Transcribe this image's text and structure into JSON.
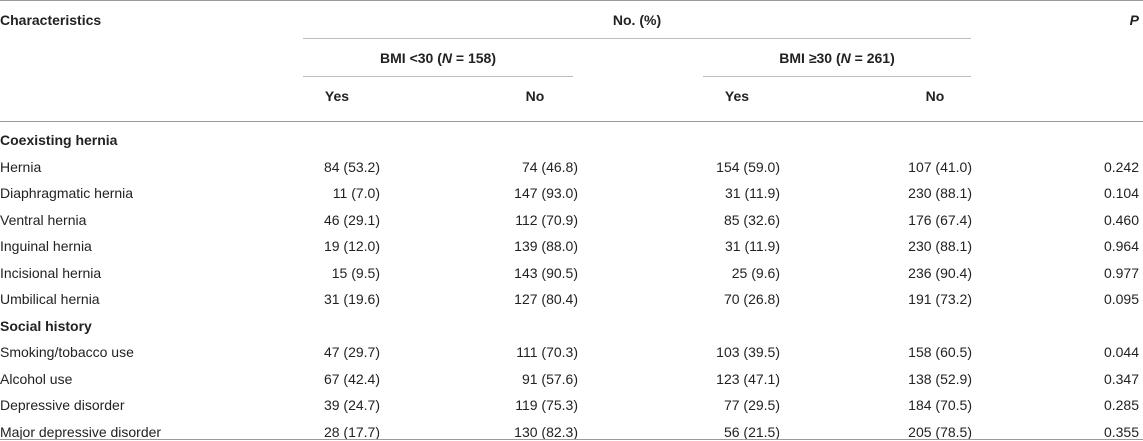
{
  "header": {
    "characteristics": "Characteristics",
    "no_pct": "No. (%)",
    "p": "P",
    "group1_prefix": "BMI <30 (",
    "group1_n": "N",
    "group1_suffix": " = 158)",
    "group2_prefix": "BMI ≥30 (",
    "group2_n": "N",
    "group2_suffix": " = 261)",
    "yes": "Yes",
    "no": "No"
  },
  "sections": [
    {
      "title": "Coexisting hernia",
      "rows": [
        {
          "label": "Hernia",
          "v": [
            "84 (53.2)",
            "74 (46.8)",
            "154 (59.0)",
            "107 (41.0)"
          ],
          "p": "0.242"
        },
        {
          "label": "Diaphragmatic hernia",
          "v": [
            "11 (7.0)",
            "147 (93.0)",
            "31 (11.9)",
            "230 (88.1)"
          ],
          "p": "0.104"
        },
        {
          "label": "Ventral hernia",
          "v": [
            "46 (29.1)",
            "112 (70.9)",
            "85 (32.6)",
            "176 (67.4)"
          ],
          "p": "0.460"
        },
        {
          "label": "Inguinal hernia",
          "v": [
            "19 (12.0)",
            "139 (88.0)",
            "31 (11.9)",
            "230 (88.1)"
          ],
          "p": "0.964"
        },
        {
          "label": "Incisional hernia",
          "v": [
            "15 (9.5)",
            "143 (90.5)",
            "25 (9.6)",
            "236 (90.4)"
          ],
          "p": "0.977"
        },
        {
          "label": "Umbilical hernia",
          "v": [
            "31 (19.6)",
            "127 (80.4)",
            "70 (26.8)",
            "191 (73.2)"
          ],
          "p": "0.095"
        }
      ]
    },
    {
      "title": "Social history",
      "rows": [
        {
          "label": "Smoking/tobacco use",
          "v": [
            "47 (29.7)",
            "111 (70.3)",
            "103 (39.5)",
            "158 (60.5)"
          ],
          "p": "0.044"
        },
        {
          "label": "Alcohol use",
          "v": [
            "67 (42.4)",
            "91 (57.6)",
            "123 (47.1)",
            "138 (52.9)"
          ],
          "p": "0.347"
        },
        {
          "label": "Depressive disorder",
          "v": [
            "39 (24.7)",
            "119 (75.3)",
            "77 (29.5)",
            "184 (70.5)"
          ],
          "p": "0.285"
        },
        {
          "label": "Major depressive disorder",
          "v": [
            "28 (17.7)",
            "130 (82.3)",
            "56 (21.5)",
            "205 (78.5)"
          ],
          "p": "0.355"
        }
      ]
    }
  ]
}
